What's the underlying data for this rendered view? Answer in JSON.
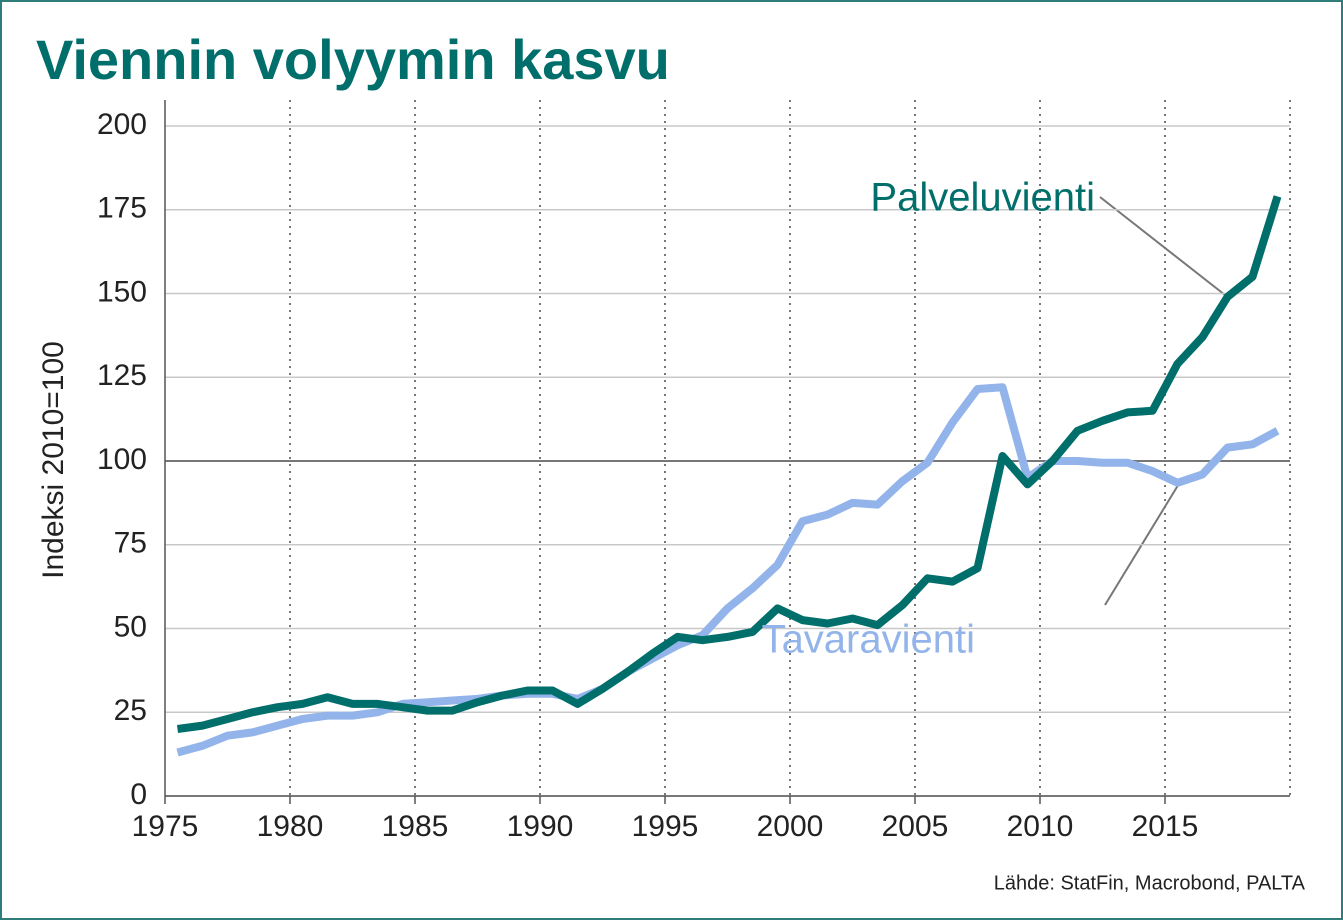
{
  "chart_data": {
    "type": "line",
    "title": "Viennin volyymin kasvu",
    "y_label": "Indeksi 2010=100",
    "source": "Lähde: StatFin, Macrobond, PALTA",
    "x": [
      1975.5,
      1976.5,
      1977.5,
      1978.5,
      1979.5,
      1980.5,
      1981.5,
      1982.5,
      1983.5,
      1984.5,
      1985.5,
      1986.5,
      1987.5,
      1988.5,
      1989.5,
      1990.5,
      1991.5,
      1992.5,
      1993.5,
      1994.5,
      1995.5,
      1996.5,
      1997.5,
      1998.5,
      1999.5,
      2000.5,
      2001.5,
      2002.5,
      2003.5,
      2004.5,
      2005.5,
      2006.5,
      2007.5,
      2008.5,
      2009.5,
      2010.5,
      2011.5,
      2012.5,
      2013.5,
      2014.5,
      2015.5,
      2016.5,
      2017.5,
      2018.5,
      2019.5
    ],
    "series": [
      {
        "name": "Palveluvienti",
        "color": "#006e6a",
        "values": [
          20,
          21,
          23,
          25,
          26.5,
          27.5,
          29.5,
          27.5,
          27.5,
          26.5,
          25.5,
          25.5,
          28,
          30,
          31.5,
          31.5,
          27.5,
          32,
          37,
          42.5,
          47.5,
          46.5,
          47.5,
          49,
          56,
          52.5,
          51.5,
          53,
          51,
          57,
          65,
          64,
          68,
          101.5,
          93,
          100,
          109,
          112,
          114.5,
          115,
          129,
          137,
          149,
          155,
          179
        ]
      },
      {
        "name": "Tavaravienti",
        "color": "#93b4ea",
        "values": [
          13,
          15,
          18,
          19,
          21,
          23,
          24,
          24,
          25,
          27.5,
          28,
          28.5,
          29,
          30,
          30.5,
          30.5,
          29,
          32,
          37,
          41,
          45,
          48,
          56,
          62,
          69,
          82,
          84,
          87.5,
          87,
          94,
          99.5,
          111.5,
          121.5,
          122,
          95,
          100,
          100,
          99.5,
          99.5,
          97,
          93.5,
          96,
          104,
          105,
          109
        ]
      }
    ],
    "xlim": [
      1975,
      2020
    ],
    "xticks": [
      1975,
      1980,
      1985,
      1990,
      1995,
      2000,
      2005,
      2010,
      2015
    ],
    "ylim": [
      0,
      200
    ],
    "yticks": [
      0,
      25,
      50,
      75,
      100,
      125,
      150,
      175,
      200
    ],
    "reference_line": 100,
    "grid": true
  }
}
